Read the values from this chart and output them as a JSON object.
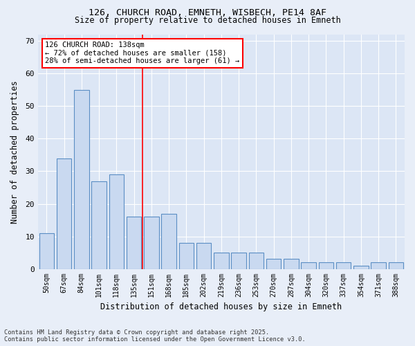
{
  "title1": "126, CHURCH ROAD, EMNETH, WISBECH, PE14 8AF",
  "title2": "Size of property relative to detached houses in Emneth",
  "xlabel": "Distribution of detached houses by size in Emneth",
  "ylabel": "Number of detached properties",
  "categories": [
    "50sqm",
    "67sqm",
    "84sqm",
    "101sqm",
    "118sqm",
    "135sqm",
    "151sqm",
    "168sqm",
    "185sqm",
    "202sqm",
    "219sqm",
    "236sqm",
    "253sqm",
    "270sqm",
    "287sqm",
    "304sqm",
    "320sqm",
    "337sqm",
    "354sqm",
    "371sqm",
    "388sqm"
  ],
  "values": [
    11,
    34,
    55,
    27,
    29,
    16,
    16,
    17,
    8,
    8,
    5,
    5,
    5,
    3,
    3,
    2,
    2,
    2,
    1,
    2,
    2
  ],
  "bar_color": "#c9d9f0",
  "bar_edge_color": "#5b8ec4",
  "vline_x": 5.5,
  "vline_color": "red",
  "annotation_text": "126 CHURCH ROAD: 138sqm\n← 72% of detached houses are smaller (158)\n28% of semi-detached houses are larger (61) →",
  "annotation_box_color": "white",
  "annotation_box_edge_color": "red",
  "ylim": [
    0,
    72
  ],
  "yticks": [
    0,
    10,
    20,
    30,
    40,
    50,
    60,
    70
  ],
  "footer": "Contains HM Land Registry data © Crown copyright and database right 2025.\nContains public sector information licensed under the Open Government Licence v3.0.",
  "background_color": "#e8eef8",
  "plot_background_color": "#dce6f5"
}
